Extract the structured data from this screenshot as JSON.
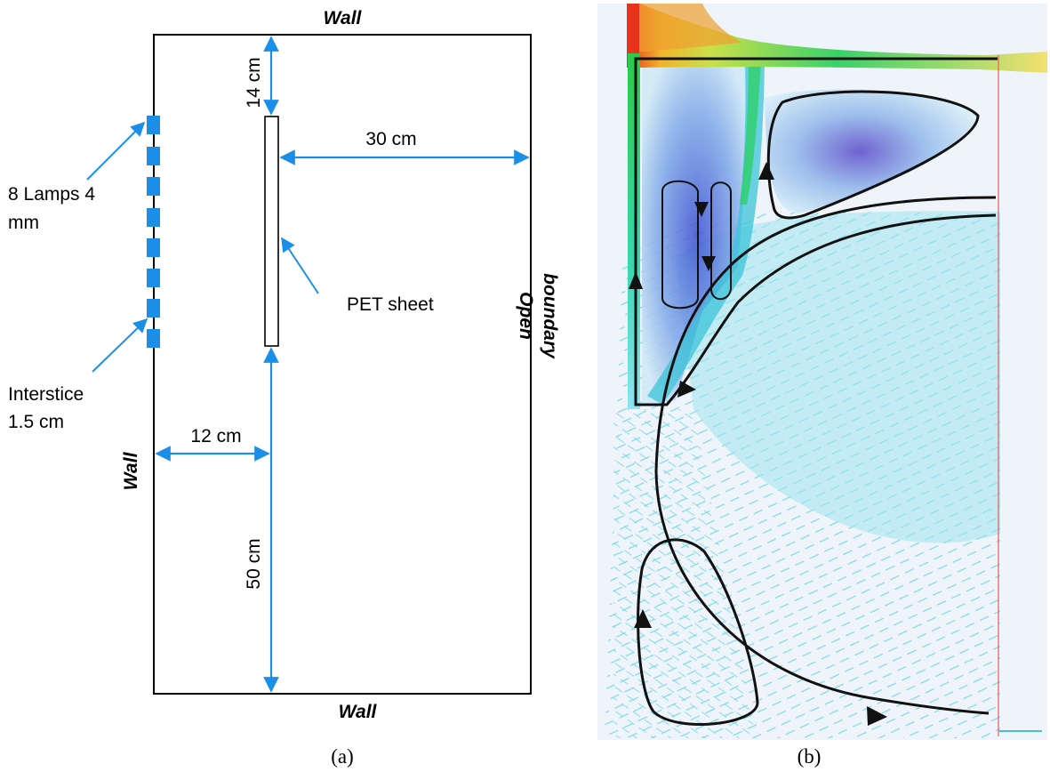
{
  "panel_a": {
    "top_wall": "Wall",
    "bottom_wall": "Wall",
    "left_wall": "Wall",
    "open_boundary_line1": "Open",
    "open_boundary_line2": "boundary",
    "dim_top": "14 cm",
    "dim_right": "30 cm",
    "dim_left": "12 cm",
    "dim_bottom": "50 cm",
    "lamps_line1": "8 Lamps 4",
    "lamps_line2": "mm",
    "pet_sheet": "PET sheet",
    "interstice_line1": "Interstice",
    "interstice_line2": "1.5 cm",
    "caption": "(a)",
    "lamp_count": 8,
    "colors": {
      "dimension": "#1b8fe8",
      "lamp": "#1b8fe8",
      "outline": "#000000"
    }
  },
  "panel_b": {
    "caption": "(b)",
    "colors": {
      "velocity_low": "#5fd3e6",
      "velocity_mid": "#2e6fd6",
      "velocity_high": "#22c13a",
      "velocity_peak": "#e8331c",
      "streamline": "#111111"
    }
  }
}
